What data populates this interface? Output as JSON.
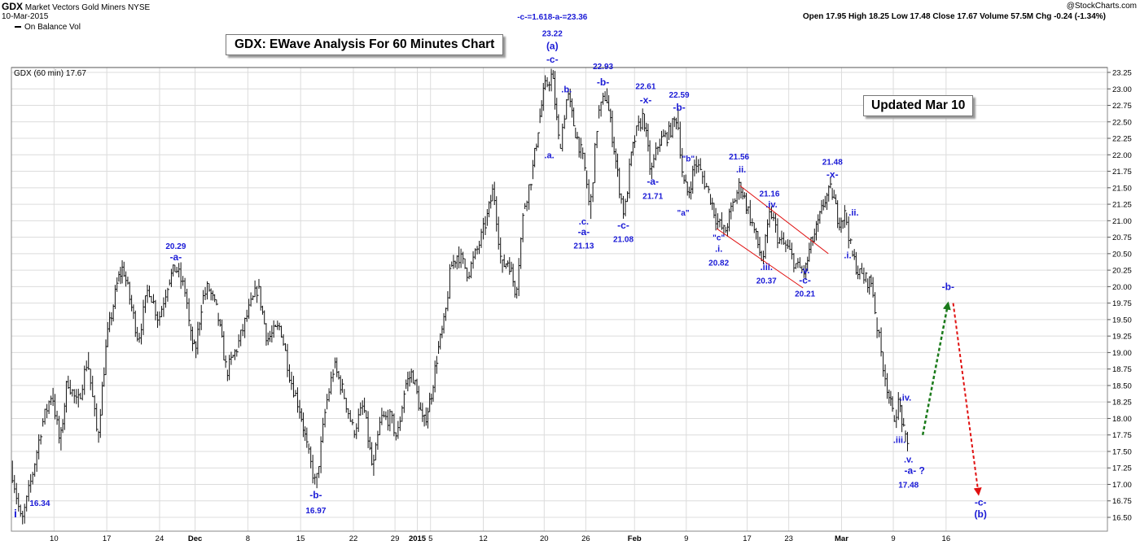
{
  "header": {
    "symbol": "GDX",
    "name": "Market Vectors Gold Miners",
    "exchange": "NYSE",
    "date": "10-Mar-2015",
    "copyright": "@StockCharts.com",
    "quote": "Open 17.95  High 18.25  Low 17.48  Close 17.67  Volume 57.5M  Chg -0.24 (-1.34%)",
    "indicator": "On Balance Vol",
    "series_label": "GDX (60 min) 17.67"
  },
  "title_box": "GDX: EWave Analysis  For 60 Minutes Chart",
  "updated_box": "Updated Mar 10",
  "colors": {
    "annotation": "#1a1ad6",
    "bars": "#111111",
    "grid": "#dcdcdc",
    "up_arrow": "#1a7a1a",
    "down_arrow": "#e01010",
    "channel": "#e01010"
  },
  "chart_data": {
    "type": "line",
    "ylim": [
      16.5,
      23.3
    ],
    "xlim": [
      0,
      108
    ],
    "y_ticks": [
      "16.50",
      "16.75",
      "17.00",
      "17.25",
      "17.50",
      "17.75",
      "18.00",
      "18.25",
      "18.50",
      "18.75",
      "19.00",
      "19.25",
      "19.50",
      "19.75",
      "20.00",
      "20.25",
      "20.50",
      "20.75",
      "21.00",
      "21.25",
      "21.50",
      "21.75",
      "22.00",
      "22.25",
      "22.50",
      "22.75",
      "23.00",
      "23.25"
    ],
    "x_ticks": [
      {
        "label": "10",
        "x": 4.2
      },
      {
        "label": "17",
        "x": 9.4
      },
      {
        "label": "24",
        "x": 14.6
      },
      {
        "label": "Dec",
        "x": 18.1
      },
      {
        "label": "8",
        "x": 23.3
      },
      {
        "label": "15",
        "x": 28.5
      },
      {
        "label": "22",
        "x": 33.7
      },
      {
        "label": "29",
        "x": 37.8
      },
      {
        "label": "2015",
        "x": 40.0
      },
      {
        "label": "5",
        "x": 41.3
      },
      {
        "label": "12",
        "x": 46.5
      },
      {
        "label": "20",
        "x": 52.5
      },
      {
        "label": "26",
        "x": 56.6
      },
      {
        "label": "Feb",
        "x": 61.4
      },
      {
        "label": "9",
        "x": 66.5
      },
      {
        "label": "17",
        "x": 72.5
      },
      {
        "label": "23",
        "x": 76.6
      },
      {
        "label": "Mar",
        "x": 81.8
      },
      {
        "label": "9",
        "x": 86.9
      },
      {
        "label": "16",
        "x": 92.1
      }
    ],
    "price_path": [
      [
        0.0,
        17.25
      ],
      [
        1.0,
        16.4
      ],
      [
        2.0,
        17.1
      ],
      [
        3.0,
        17.9
      ],
      [
        4.0,
        18.4
      ],
      [
        4.8,
        17.6
      ],
      [
        5.5,
        18.6
      ],
      [
        6.5,
        18.2
      ],
      [
        7.5,
        18.9
      ],
      [
        8.5,
        17.7
      ],
      [
        9.4,
        19.2
      ],
      [
        10.5,
        20.1
      ],
      [
        11.0,
        20.3
      ],
      [
        12.5,
        19.2
      ],
      [
        13.5,
        20.0
      ],
      [
        14.5,
        19.5
      ],
      [
        15.5,
        20.1
      ],
      [
        16.2,
        20.29
      ],
      [
        17.2,
        19.9
      ],
      [
        17.6,
        19.3
      ],
      [
        18.1,
        19.0
      ],
      [
        18.8,
        19.8
      ],
      [
        19.4,
        20.0
      ],
      [
        20.3,
        19.6
      ],
      [
        21.2,
        18.7
      ],
      [
        22.3,
        19.1
      ],
      [
        23.3,
        19.6
      ],
      [
        24.3,
        20.0
      ],
      [
        25.2,
        19.2
      ],
      [
        26.5,
        19.4
      ],
      [
        27.5,
        18.6
      ],
      [
        28.5,
        18.1
      ],
      [
        29.2,
        17.5
      ],
      [
        30.0,
        16.97
      ],
      [
        31.0,
        18.2
      ],
      [
        31.8,
        18.8
      ],
      [
        32.7,
        18.4
      ],
      [
        33.7,
        17.8
      ],
      [
        34.7,
        18.2
      ],
      [
        35.6,
        17.2
      ],
      [
        36.4,
        18.0
      ],
      [
        37.4,
        18.0
      ],
      [
        38.0,
        17.7
      ],
      [
        38.8,
        18.5
      ],
      [
        39.5,
        18.7
      ],
      [
        40.6,
        17.9
      ],
      [
        41.3,
        18.3
      ],
      [
        42.0,
        19.0
      ],
      [
        42.7,
        19.5
      ],
      [
        43.3,
        20.3
      ],
      [
        44.0,
        20.5
      ],
      [
        45.0,
        20.2
      ],
      [
        46.0,
        20.6
      ],
      [
        46.8,
        21.0
      ],
      [
        47.5,
        21.5
      ],
      [
        48.3,
        20.3
      ],
      [
        49.0,
        20.4
      ],
      [
        49.7,
        19.9
      ],
      [
        50.5,
        21.2
      ],
      [
        51.3,
        21.7
      ],
      [
        52.0,
        22.5
      ],
      [
        52.5,
        23.0
      ],
      [
        53.3,
        23.22
      ],
      [
        54.0,
        22.1
      ],
      [
        54.8,
        22.93
      ],
      [
        55.5,
        22.4
      ],
      [
        56.2,
        22.0
      ],
      [
        56.6,
        21.7
      ],
      [
        57.0,
        21.13
      ],
      [
        57.8,
        22.6
      ],
      [
        58.6,
        22.93
      ],
      [
        59.3,
        22.2
      ],
      [
        60.0,
        21.4
      ],
      [
        60.4,
        21.08
      ],
      [
        61.0,
        21.9
      ],
      [
        61.5,
        22.3
      ],
      [
        62.3,
        22.61
      ],
      [
        63.0,
        21.71
      ],
      [
        63.8,
        22.2
      ],
      [
        64.7,
        22.3
      ],
      [
        65.6,
        22.59
      ],
      [
        66.2,
        21.6
      ],
      [
        66.7,
        21.4
      ],
      [
        67.4,
        21.9
      ],
      [
        68.0,
        21.7
      ],
      [
        68.8,
        21.4
      ],
      [
        69.5,
        21.0
      ],
      [
        70.3,
        20.82
      ],
      [
        71.0,
        21.2
      ],
      [
        71.8,
        21.56
      ],
      [
        72.5,
        21.2
      ],
      [
        73.3,
        20.8
      ],
      [
        74.0,
        20.37
      ],
      [
        74.8,
        21.16
      ],
      [
        75.6,
        20.7
      ],
      [
        76.4,
        20.6
      ],
      [
        77.4,
        20.3
      ],
      [
        78.2,
        20.21
      ],
      [
        78.7,
        20.6
      ],
      [
        79.4,
        20.9
      ],
      [
        80.1,
        21.3
      ],
      [
        80.8,
        21.48
      ],
      [
        81.5,
        21.0
      ],
      [
        82.2,
        21.1
      ],
      [
        82.8,
        20.5
      ],
      [
        83.5,
        20.2
      ],
      [
        84.3,
        20.1
      ],
      [
        84.8,
        20.05
      ],
      [
        85.2,
        19.5
      ],
      [
        85.8,
        18.9
      ],
      [
        86.4,
        18.4
      ],
      [
        86.9,
        18.0
      ],
      [
        87.5,
        18.25
      ],
      [
        88.0,
        17.7
      ],
      [
        88.4,
        17.55
      ]
    ],
    "projection_up": [
      [
        89.8,
        17.75
      ],
      [
        92.3,
        19.75
      ]
    ],
    "projection_down": [
      [
        92.8,
        19.75
      ],
      [
        95.3,
        16.85
      ]
    ],
    "channel_lines": [
      [
        [
          69.5,
          20.88
        ],
        [
          78.0,
          19.98
        ]
      ],
      [
        [
          71.8,
          21.53
        ],
        [
          80.5,
          20.5
        ]
      ]
    ],
    "annotations": [
      {
        "x": 0.4,
        "y": 16.5,
        "text": "i",
        "size": 14
      },
      {
        "x": 2.8,
        "y": 16.67,
        "text": "16.34",
        "size": 10
      },
      {
        "x": 16.2,
        "y": 20.57,
        "text": "20.29",
        "size": 10
      },
      {
        "x": 16.2,
        "y": 20.4,
        "text": "-a-",
        "size": 12
      },
      {
        "x": 30.0,
        "y": 16.79,
        "text": "-b-",
        "size": 12
      },
      {
        "x": 30.0,
        "y": 16.56,
        "text": "16.97",
        "size": 10
      },
      {
        "x": 53.3,
        "y": 24.05,
        "text": "-c-=1.618-a-=23.36",
        "size": 10
      },
      {
        "x": 53.3,
        "y": 23.8,
        "text": "23.22",
        "size": 10
      },
      {
        "x": 53.3,
        "y": 23.6,
        "text": "(a)",
        "size": 12
      },
      {
        "x": 53.3,
        "y": 23.4,
        "text": "-c-",
        "size": 12
      },
      {
        "x": 54.7,
        "y": 22.95,
        "text": ".b.",
        "size": 11
      },
      {
        "x": 53.0,
        "y": 21.95,
        "text": ".a.",
        "size": 11
      },
      {
        "x": 58.3,
        "y": 23.3,
        "text": "22.93",
        "size": 10
      },
      {
        "x": 58.3,
        "y": 23.05,
        "text": "-b-",
        "size": 12
      },
      {
        "x": 56.4,
        "y": 20.94,
        "text": ".c.",
        "size": 11
      },
      {
        "x": 56.4,
        "y": 20.78,
        "text": "-a-",
        "size": 12
      },
      {
        "x": 56.4,
        "y": 20.58,
        "text": "21.13",
        "size": 10
      },
      {
        "x": 60.3,
        "y": 20.88,
        "text": "-c-",
        "size": 12
      },
      {
        "x": 60.3,
        "y": 20.68,
        "text": "21.08",
        "size": 10
      },
      {
        "x": 62.5,
        "y": 23.0,
        "text": "22.61",
        "size": 10
      },
      {
        "x": 62.5,
        "y": 22.78,
        "text": "-x-",
        "size": 12
      },
      {
        "x": 63.2,
        "y": 21.55,
        "text": "-a-",
        "size": 12
      },
      {
        "x": 63.2,
        "y": 21.33,
        "text": "21.71",
        "size": 10
      },
      {
        "x": 65.8,
        "y": 22.87,
        "text": "22.59",
        "size": 10
      },
      {
        "x": 65.8,
        "y": 22.67,
        "text": "-b-",
        "size": 12
      },
      {
        "x": 66.7,
        "y": 21.9,
        "text": "\"b\"",
        "size": 10
      },
      {
        "x": 66.2,
        "y": 21.08,
        "text": "\"a\"",
        "size": 10
      },
      {
        "x": 69.7,
        "y": 20.7,
        "text": "\"c\"",
        "size": 10
      },
      {
        "x": 69.7,
        "y": 20.53,
        "text": ".i.",
        "size": 11
      },
      {
        "x": 69.7,
        "y": 20.32,
        "text": "20.82",
        "size": 10
      },
      {
        "x": 71.7,
        "y": 21.93,
        "text": "21.56",
        "size": 10
      },
      {
        "x": 71.9,
        "y": 21.73,
        "text": ".ii.",
        "size": 11
      },
      {
        "x": 74.7,
        "y": 21.37,
        "text": "21.16",
        "size": 10
      },
      {
        "x": 74.9,
        "y": 21.2,
        "text": ".iv.",
        "size": 11
      },
      {
        "x": 74.4,
        "y": 20.25,
        "text": ".iii.",
        "size": 11
      },
      {
        "x": 74.4,
        "y": 20.05,
        "text": "20.37",
        "size": 10
      },
      {
        "x": 78.2,
        "y": 20.2,
        "text": ".v.",
        "size": 11
      },
      {
        "x": 78.2,
        "y": 20.05,
        "text": "-c-",
        "size": 12
      },
      {
        "x": 78.2,
        "y": 19.85,
        "text": "20.21",
        "size": 10
      },
      {
        "x": 80.9,
        "y": 21.85,
        "text": "21.48",
        "size": 10
      },
      {
        "x": 80.9,
        "y": 21.65,
        "text": "-x-",
        "size": 12
      },
      {
        "x": 83.0,
        "y": 21.08,
        "text": ".ii.",
        "size": 11
      },
      {
        "x": 82.4,
        "y": 20.43,
        "text": ".i.",
        "size": 11
      },
      {
        "x": 88.1,
        "y": 18.27,
        "text": ".iv.",
        "size": 11
      },
      {
        "x": 87.5,
        "y": 17.63,
        "text": ".iii.",
        "size": 11
      },
      {
        "x": 88.4,
        "y": 17.33,
        "text": ".v.",
        "size": 11
      },
      {
        "x": 89.0,
        "y": 17.16,
        "text": "-a- ?",
        "size": 12
      },
      {
        "x": 88.4,
        "y": 16.95,
        "text": "17.48",
        "size": 10
      },
      {
        "x": 92.3,
        "y": 19.95,
        "text": "-b-",
        "size": 12
      },
      {
        "x": 95.5,
        "y": 16.68,
        "text": "-c-",
        "size": 12
      },
      {
        "x": 95.5,
        "y": 16.5,
        "text": "(b)",
        "size": 12
      }
    ]
  }
}
